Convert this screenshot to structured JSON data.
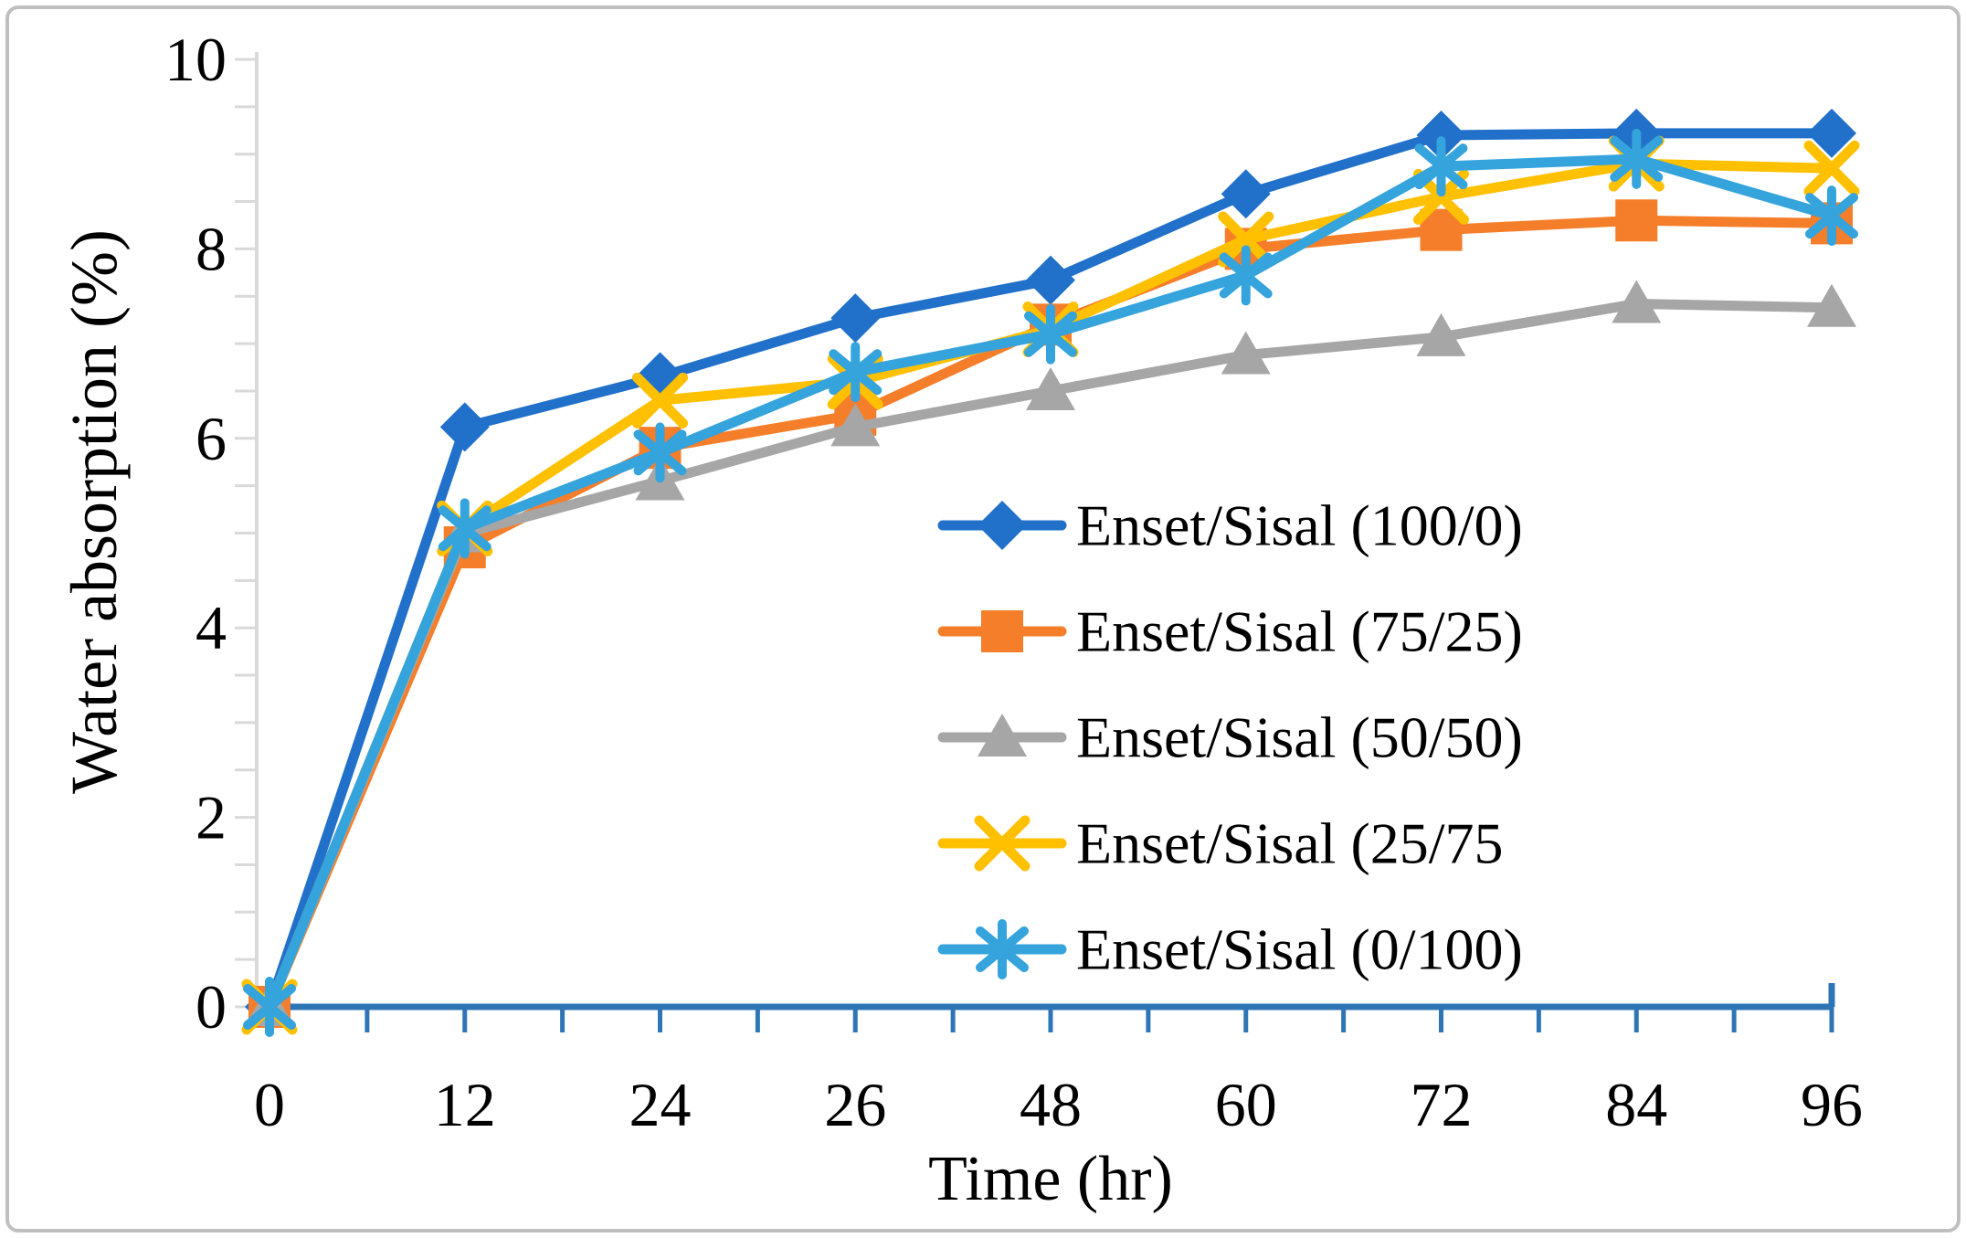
{
  "figure": {
    "border_color": "#bfbfbf",
    "background_color": "#ffffff"
  },
  "chart_data": {
    "type": "line",
    "title": "",
    "xlabel": "Time (hr)",
    "ylabel": "Water absorption (%)",
    "categories": [
      "0",
      "12",
      "24",
      "26",
      "48",
      "60",
      "72",
      "84",
      "96"
    ],
    "y_ticks": [
      0,
      2,
      4,
      6,
      8,
      10
    ],
    "ylim": [
      0,
      10
    ],
    "y_minor_step": 0.5,
    "grid": false,
    "legend_position": "inside-right-middle",
    "axis_colors": {
      "x_axis": "#2e75b6",
      "y_axis": "#d9d9d9",
      "tick_text": "#000000"
    },
    "series": [
      {
        "name": "Enset/Sisal (100/0)",
        "color": "#2170c9",
        "marker": "diamond",
        "values": [
          0,
          6.12,
          6.65,
          7.27,
          7.67,
          8.58,
          9.2,
          9.22,
          9.22
        ]
      },
      {
        "name": "Enset/Sisal (75/25)",
        "color": "#f57e2a",
        "marker": "square",
        "values": [
          0,
          4.85,
          5.9,
          6.25,
          7.2,
          8.0,
          8.2,
          8.3,
          8.27
        ]
      },
      {
        "name": "Enset/Sisal (50/50)",
        "color": "#a6a6a6",
        "marker": "triangle",
        "values": [
          0,
          5.0,
          5.55,
          6.12,
          6.5,
          6.88,
          7.07,
          7.42,
          7.38
        ]
      },
      {
        "name": "Enset/Sisal (25/75",
        "color": "#ffc000",
        "marker": "x",
        "values": [
          0,
          5.05,
          6.4,
          6.6,
          7.15,
          8.1,
          8.55,
          8.9,
          8.85
        ]
      },
      {
        "name": "Enset/Sisal (0/100)",
        "color": "#35a3dc",
        "marker": "asterisk",
        "values": [
          0,
          5.05,
          5.85,
          6.7,
          7.1,
          7.72,
          8.87,
          8.95,
          8.35
        ]
      }
    ]
  }
}
